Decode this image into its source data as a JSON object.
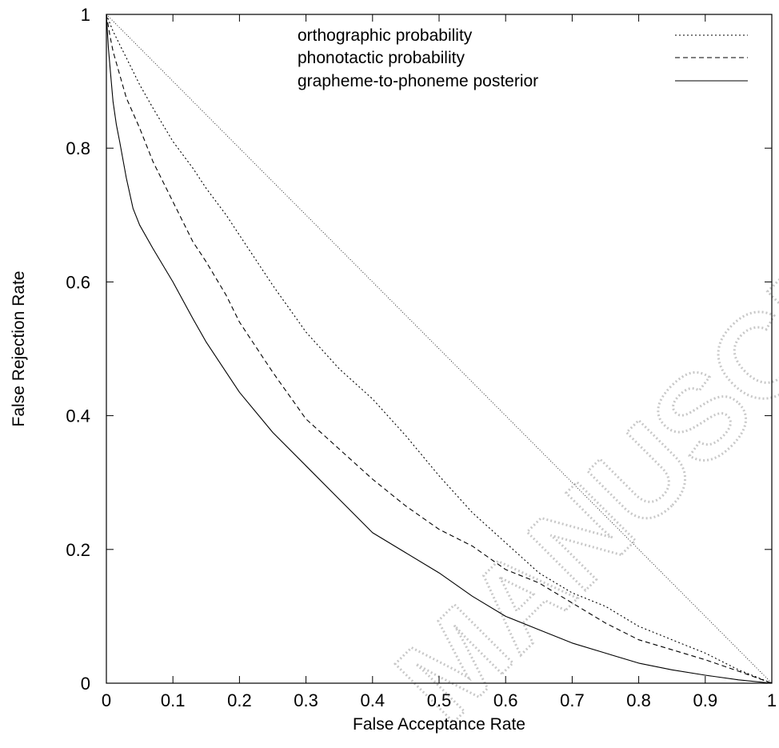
{
  "watermark": "MANUSCRIPT",
  "chart_data": {
    "type": "line",
    "xlabel": "False Acceptance Rate",
    "ylabel": "False Rejection Rate",
    "xlim": [
      0,
      1
    ],
    "ylim": [
      0,
      1
    ],
    "xticks": [
      "0",
      "0.1",
      "0.2",
      "0.3",
      "0.4",
      "0.5",
      "0.6",
      "0.7",
      "0.8",
      "0.9",
      "1"
    ],
    "yticks": [
      "0",
      "0.2",
      "0.4",
      "0.6",
      "0.8",
      "1"
    ],
    "grid": false,
    "legend_position": "top-right",
    "series": [
      {
        "name": "orthographic probability",
        "style": "dotted",
        "x": [
          0,
          0.01,
          0.02,
          0.03,
          0.05,
          0.07,
          0.1,
          0.13,
          0.15,
          0.18,
          0.2,
          0.25,
          0.3,
          0.35,
          0.4,
          0.45,
          0.5,
          0.55,
          0.6,
          0.65,
          0.7,
          0.75,
          0.8,
          0.85,
          0.9,
          0.95,
          1.0
        ],
        "y": [
          1.0,
          0.975,
          0.955,
          0.935,
          0.895,
          0.86,
          0.81,
          0.77,
          0.74,
          0.7,
          0.67,
          0.595,
          0.525,
          0.47,
          0.425,
          0.37,
          0.31,
          0.255,
          0.21,
          0.165,
          0.135,
          0.115,
          0.085,
          0.065,
          0.045,
          0.02,
          0.0
        ]
      },
      {
        "name": "phonotactic probability",
        "style": "dashed",
        "x": [
          0,
          0.005,
          0.01,
          0.02,
          0.03,
          0.05,
          0.07,
          0.1,
          0.13,
          0.15,
          0.18,
          0.2,
          0.25,
          0.3,
          0.35,
          0.4,
          0.45,
          0.5,
          0.55,
          0.6,
          0.65,
          0.7,
          0.75,
          0.8,
          0.85,
          0.9,
          0.95,
          1.0
        ],
        "y": [
          1.0,
          0.97,
          0.945,
          0.91,
          0.875,
          0.83,
          0.78,
          0.72,
          0.66,
          0.63,
          0.58,
          0.54,
          0.465,
          0.395,
          0.35,
          0.305,
          0.265,
          0.23,
          0.205,
          0.17,
          0.15,
          0.12,
          0.09,
          0.065,
          0.05,
          0.035,
          0.018,
          0.0
        ]
      },
      {
        "name": "grapheme-to-phoneme posterior",
        "style": "solid",
        "x": [
          0,
          0.003,
          0.006,
          0.01,
          0.015,
          0.02,
          0.03,
          0.04,
          0.05,
          0.07,
          0.1,
          0.13,
          0.15,
          0.18,
          0.2,
          0.25,
          0.3,
          0.35,
          0.4,
          0.45,
          0.5,
          0.55,
          0.6,
          0.65,
          0.7,
          0.75,
          0.8,
          0.85,
          0.9,
          0.95,
          1.0
        ],
        "y": [
          1.0,
          0.95,
          0.915,
          0.87,
          0.835,
          0.81,
          0.755,
          0.71,
          0.685,
          0.65,
          0.6,
          0.545,
          0.51,
          0.465,
          0.435,
          0.375,
          0.325,
          0.275,
          0.225,
          0.195,
          0.165,
          0.13,
          0.1,
          0.08,
          0.06,
          0.045,
          0.03,
          0.02,
          0.012,
          0.005,
          0.0
        ]
      }
    ]
  }
}
